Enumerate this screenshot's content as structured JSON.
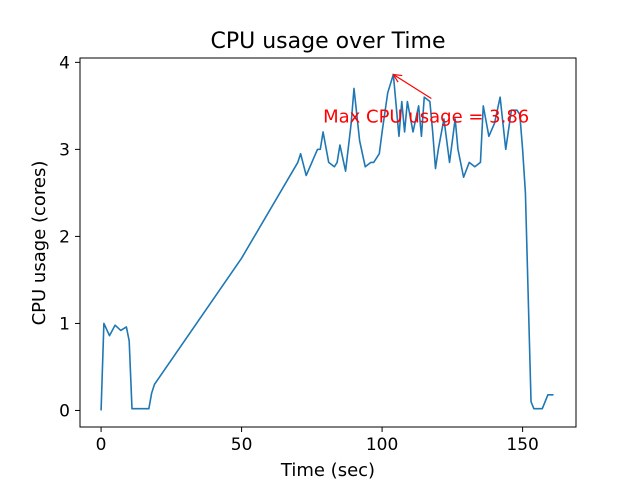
{
  "chart_data": {
    "type": "line",
    "title": "CPU usage over Time",
    "xlabel": "Time (sec)",
    "ylabel": "CPU usage (cores)",
    "xlim": [
      -7.5,
      169
    ],
    "ylim": [
      -0.19,
      4.05
    ],
    "xticks": [
      0,
      50,
      100,
      150
    ],
    "yticks": [
      0,
      1,
      2,
      3,
      4
    ],
    "grid": false,
    "legend": "none",
    "colors": {
      "line": "#1f77b4",
      "annotation": "#ff0000"
    },
    "series": [
      {
        "x": [
          0,
          1,
          3,
          5,
          7,
          9,
          10,
          11,
          13,
          15,
          17,
          18,
          19,
          50,
          70,
          71,
          73,
          75,
          77,
          78,
          79,
          81,
          83,
          84,
          85,
          87,
          89,
          90,
          92,
          94,
          96,
          97,
          99,
          100,
          102,
          104,
          106,
          107,
          108,
          109,
          111,
          113,
          114,
          115,
          117,
          118,
          119,
          120,
          122,
          124,
          126,
          127,
          129,
          131,
          133,
          135,
          136,
          138,
          140,
          142,
          144,
          146,
          148,
          149,
          150,
          151,
          153,
          154,
          155,
          157,
          159,
          161
        ],
        "y": [
          0,
          1,
          0.86,
          0.98,
          0.92,
          0.96,
          0.8,
          0.02,
          0.02,
          0.02,
          0.02,
          0.2,
          0.3,
          1.75,
          2.85,
          2.95,
          2.7,
          2.85,
          3.0,
          3.0,
          3.2,
          2.85,
          2.8,
          2.85,
          3.05,
          2.75,
          3.3,
          3.7,
          3.1,
          2.8,
          2.85,
          2.85,
          2.95,
          3.2,
          3.65,
          3.86,
          3.15,
          3.55,
          3.2,
          3.55,
          3.2,
          3.5,
          3.15,
          3.6,
          3.55,
          3.2,
          2.78,
          3.0,
          3.35,
          2.85,
          3.35,
          3.0,
          2.68,
          2.85,
          2.8,
          2.85,
          3.5,
          3.15,
          3.3,
          3.6,
          3.0,
          3.45,
          3.45,
          3.4,
          3.0,
          2.5,
          0.1,
          0.02,
          0.02,
          0.02,
          0.18,
          0.18
        ]
      }
    ],
    "annotation": {
      "text": "Max CPU usage = 3.86",
      "point": [
        104,
        3.86
      ],
      "text_at": [
        79,
        3.4
      ]
    }
  }
}
